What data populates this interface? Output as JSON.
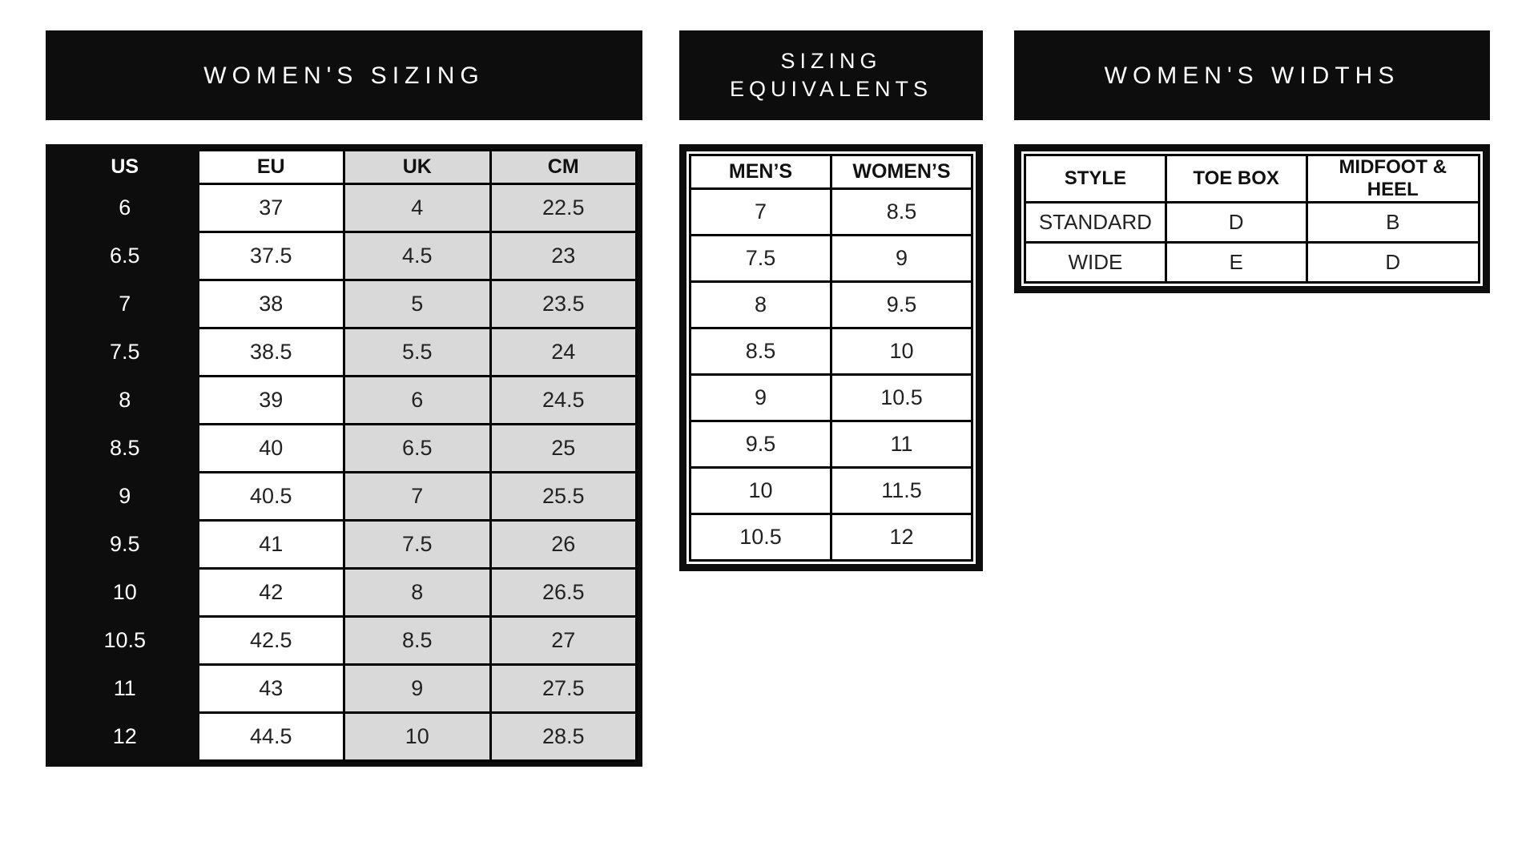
{
  "colors": {
    "bar_background": "#0d0d0d",
    "cell_gray": "#d9d9d9",
    "cell_white": "#ffffff",
    "text_dark": "#222222"
  },
  "womens_sizing": {
    "title": "WOMEN'S SIZING",
    "columns": [
      "US",
      "EU",
      "UK",
      "CM"
    ],
    "rows": [
      [
        "6",
        "37",
        "4",
        "22.5"
      ],
      [
        "6.5",
        "37.5",
        "4.5",
        "23"
      ],
      [
        "7",
        "38",
        "5",
        "23.5"
      ],
      [
        "7.5",
        "38.5",
        "5.5",
        "24"
      ],
      [
        "8",
        "39",
        "6",
        "24.5"
      ],
      [
        "8.5",
        "40",
        "6.5",
        "25"
      ],
      [
        "9",
        "40.5",
        "7",
        "25.5"
      ],
      [
        "9.5",
        "41",
        "7.5",
        "26"
      ],
      [
        "10",
        "42",
        "8",
        "26.5"
      ],
      [
        "10.5",
        "42.5",
        "8.5",
        "27"
      ],
      [
        "11",
        "43",
        "9",
        "27.5"
      ],
      [
        "12",
        "44.5",
        "10",
        "28.5"
      ]
    ]
  },
  "sizing_equivalents": {
    "title_lines": [
      "SIZING",
      "EQUIVALENTS"
    ],
    "columns": [
      "MEN’S",
      "WOMEN’S"
    ],
    "rows": [
      [
        "7",
        "8.5"
      ],
      [
        "7.5",
        "9"
      ],
      [
        "8",
        "9.5"
      ],
      [
        "8.5",
        "10"
      ],
      [
        "9",
        "10.5"
      ],
      [
        "9.5",
        "11"
      ],
      [
        "10",
        "11.5"
      ],
      [
        "10.5",
        "12"
      ]
    ]
  },
  "womens_widths": {
    "title": "WOMEN'S WIDTHS",
    "columns": [
      "STYLE",
      "TOE BOX",
      "MIDFOOT & HEEL"
    ],
    "rows": [
      [
        "STANDARD",
        "D",
        "B"
      ],
      [
        "WIDE",
        "E",
        "D"
      ]
    ]
  }
}
